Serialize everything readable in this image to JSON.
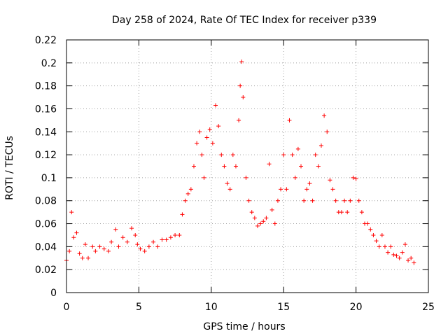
{
  "chart_data": {
    "type": "scatter",
    "title": "Day 258 of 2024, Rate Of TEC Index for receiver p339",
    "xlabel": "GPS time / hours",
    "ylabel": "ROTI / TECUs",
    "xlim": [
      0,
      25
    ],
    "ylim": [
      0,
      0.22
    ],
    "xticks": [
      "0",
      "5",
      "10",
      "15",
      "20",
      "25"
    ],
    "yticks": [
      "0",
      "0.02",
      "0.04",
      "0.06",
      "0.08",
      "0.1",
      "0.12",
      "0.14",
      "0.16",
      "0.18",
      "0.2",
      "0.22"
    ],
    "grid": true,
    "marker": "+",
    "color": "#ff0000",
    "series": [
      {
        "x": [
          0.0,
          0.2,
          0.35,
          0.5,
          0.7,
          0.9,
          1.1,
          1.3,
          1.5,
          1.8,
          2.0,
          2.3,
          2.6,
          2.9,
          3.1,
          3.4,
          3.6,
          3.9,
          4.2,
          4.5,
          4.75,
          4.9,
          5.1,
          5.4,
          5.7,
          6.0,
          6.3,
          6.6,
          6.9,
          7.2,
          7.5,
          7.8,
          8.0,
          8.2,
          8.4,
          8.6,
          8.8,
          9.0,
          9.2,
          9.35,
          9.5,
          9.7,
          9.9,
          10.1,
          10.3,
          10.5,
          10.7,
          10.9,
          11.1,
          11.3,
          11.5,
          11.7,
          11.9,
          12.0,
          12.1,
          12.2,
          12.4,
          12.6,
          12.8,
          13.0,
          13.2,
          13.4,
          13.6,
          13.8,
          14.0,
          14.2,
          14.4,
          14.6,
          14.8,
          15.0,
          15.2,
          15.4,
          15.6,
          15.8,
          16.0,
          16.2,
          16.4,
          16.6,
          16.8,
          17.0,
          17.2,
          17.4,
          17.6,
          17.8,
          18.0,
          18.2,
          18.4,
          18.6,
          18.8,
          19.0,
          19.2,
          19.4,
          19.6,
          19.8,
          20.0,
          20.2,
          20.4,
          20.6,
          20.8,
          21.0,
          21.2,
          21.4,
          21.6,
          21.8,
          22.0,
          22.2,
          22.4,
          22.6,
          22.8,
          23.0,
          23.2,
          23.4,
          23.6,
          23.8,
          24.0
        ],
        "y": [
          0.028,
          0.036,
          0.07,
          0.048,
          0.052,
          0.034,
          0.03,
          0.042,
          0.03,
          0.04,
          0.036,
          0.04,
          0.038,
          0.036,
          0.044,
          0.055,
          0.04,
          0.048,
          0.044,
          0.056,
          0.05,
          0.042,
          0.038,
          0.036,
          0.04,
          0.044,
          0.04,
          0.046,
          0.046,
          0.048,
          0.05,
          0.05,
          0.068,
          0.08,
          0.086,
          0.09,
          0.11,
          0.13,
          0.14,
          0.12,
          0.1,
          0.135,
          0.142,
          0.13,
          0.163,
          0.145,
          0.12,
          0.11,
          0.095,
          0.09,
          0.12,
          0.11,
          0.15,
          0.18,
          0.201,
          0.17,
          0.1,
          0.08,
          0.07,
          0.065,
          0.058,
          0.06,
          0.062,
          0.065,
          0.112,
          0.072,
          0.06,
          0.08,
          0.09,
          0.12,
          0.09,
          0.15,
          0.12,
          0.1,
          0.125,
          0.11,
          0.08,
          0.09,
          0.095,
          0.08,
          0.12,
          0.11,
          0.128,
          0.154,
          0.14,
          0.098,
          0.09,
          0.08,
          0.07,
          0.07,
          0.08,
          0.07,
          0.08,
          0.1,
          0.099,
          0.08,
          0.07,
          0.06,
          0.06,
          0.055,
          0.05,
          0.045,
          0.04,
          0.05,
          0.04,
          0.035,
          0.04,
          0.033,
          0.032,
          0.03,
          0.035,
          0.042,
          0.028,
          0.03,
          0.026
        ]
      }
    ]
  }
}
